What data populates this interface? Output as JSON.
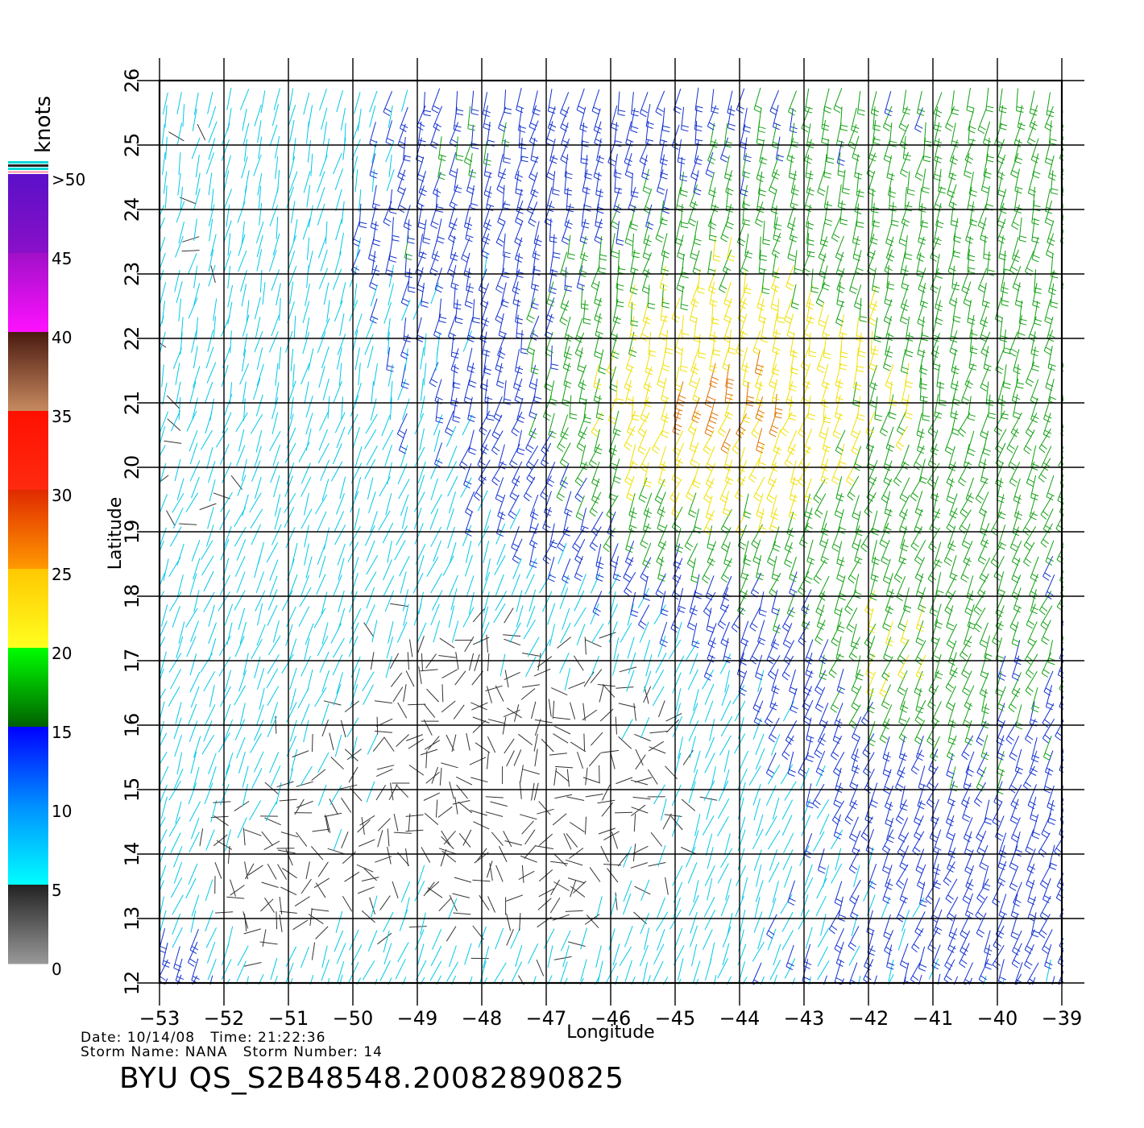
{
  "map": {
    "x_axis_label": "Longitude",
    "y_axis_label": "Latitude",
    "lon_ticks": [
      -53,
      -52,
      -51,
      -50,
      -49,
      -48,
      -47,
      -46,
      -45,
      -44,
      -43,
      -42,
      -41,
      -40,
      -39
    ],
    "lat_ticks": [
      12,
      13,
      14,
      15,
      16,
      17,
      18,
      19,
      20,
      21,
      22,
      23,
      24,
      25,
      26
    ],
    "lon_tick_labels": [
      "−53",
      "−52",
      "−51",
      "−50",
      "−49",
      "−48",
      "−47",
      "−46",
      "−45",
      "−44",
      "−43",
      "−42",
      "−41",
      "−40",
      "−39"
    ],
    "lat_tick_labels": [
      "12",
      "13",
      "14",
      "15",
      "16",
      "17",
      "18",
      "19",
      "20",
      "21",
      "22",
      "23",
      "24",
      "25",
      "26"
    ],
    "lon_range": [
      -53,
      -39
    ],
    "lat_range": [
      12,
      26
    ],
    "grid": true,
    "layer": "wind barbs",
    "colors": {
      "grid": "#000000",
      "background": "#ffffff"
    }
  },
  "legend": {
    "unit_label": "knots",
    "tick_labels": [
      ">50",
      "45",
      "40",
      "35",
      "30",
      "25",
      "20",
      "15",
      "10",
      "5",
      "0"
    ],
    "bands": [
      {
        "range": "45-50",
        "top": "#5a10c8",
        "bottom": "#8a10c8"
      },
      {
        "range": "40-45",
        "top": "#a010c8",
        "bottom": "#ff10ff"
      },
      {
        "range": "35-40",
        "top": "#4a1a10",
        "bottom": "#c88a60"
      },
      {
        "range": "30-35",
        "top": "#ff1000",
        "bottom": "#ff2a10"
      },
      {
        "range": "25-30",
        "top": "#e02a00",
        "bottom": "#ff9a00"
      },
      {
        "range": "20-25",
        "top": "#ffc800",
        "bottom": "#ffff20"
      },
      {
        "range": "15-20",
        "top": "#00ff00",
        "bottom": "#006000"
      },
      {
        "range": "10-15",
        "top": "#0000ff",
        "bottom": "#0090ff"
      },
      {
        "range": "5-10",
        "top": "#0090ff",
        "bottom": "#00ffff"
      },
      {
        "range": "0-5",
        "top": "#222222",
        "bottom": "#999999"
      }
    ],
    "top_stripes": [
      "#00d8d8",
      "#222222",
      "#00d8d8",
      "#ffb0c0"
    ]
  },
  "info": {
    "date_line": "Date: 10/14/08   Time: 21:22:36",
    "storm_line": "Storm Name: NANA   Storm Number: 14",
    "title": "BYU QS_S2B48548.20082890825"
  },
  "wind_speed_classes": {
    "0-5": "#333333",
    "5-10": "#00c8e8",
    "10-15": "#1030d0",
    "15-20": "#10a010",
    "20-25": "#f0e000",
    "25-30": "#e07000",
    "30-35": "#d02000"
  }
}
